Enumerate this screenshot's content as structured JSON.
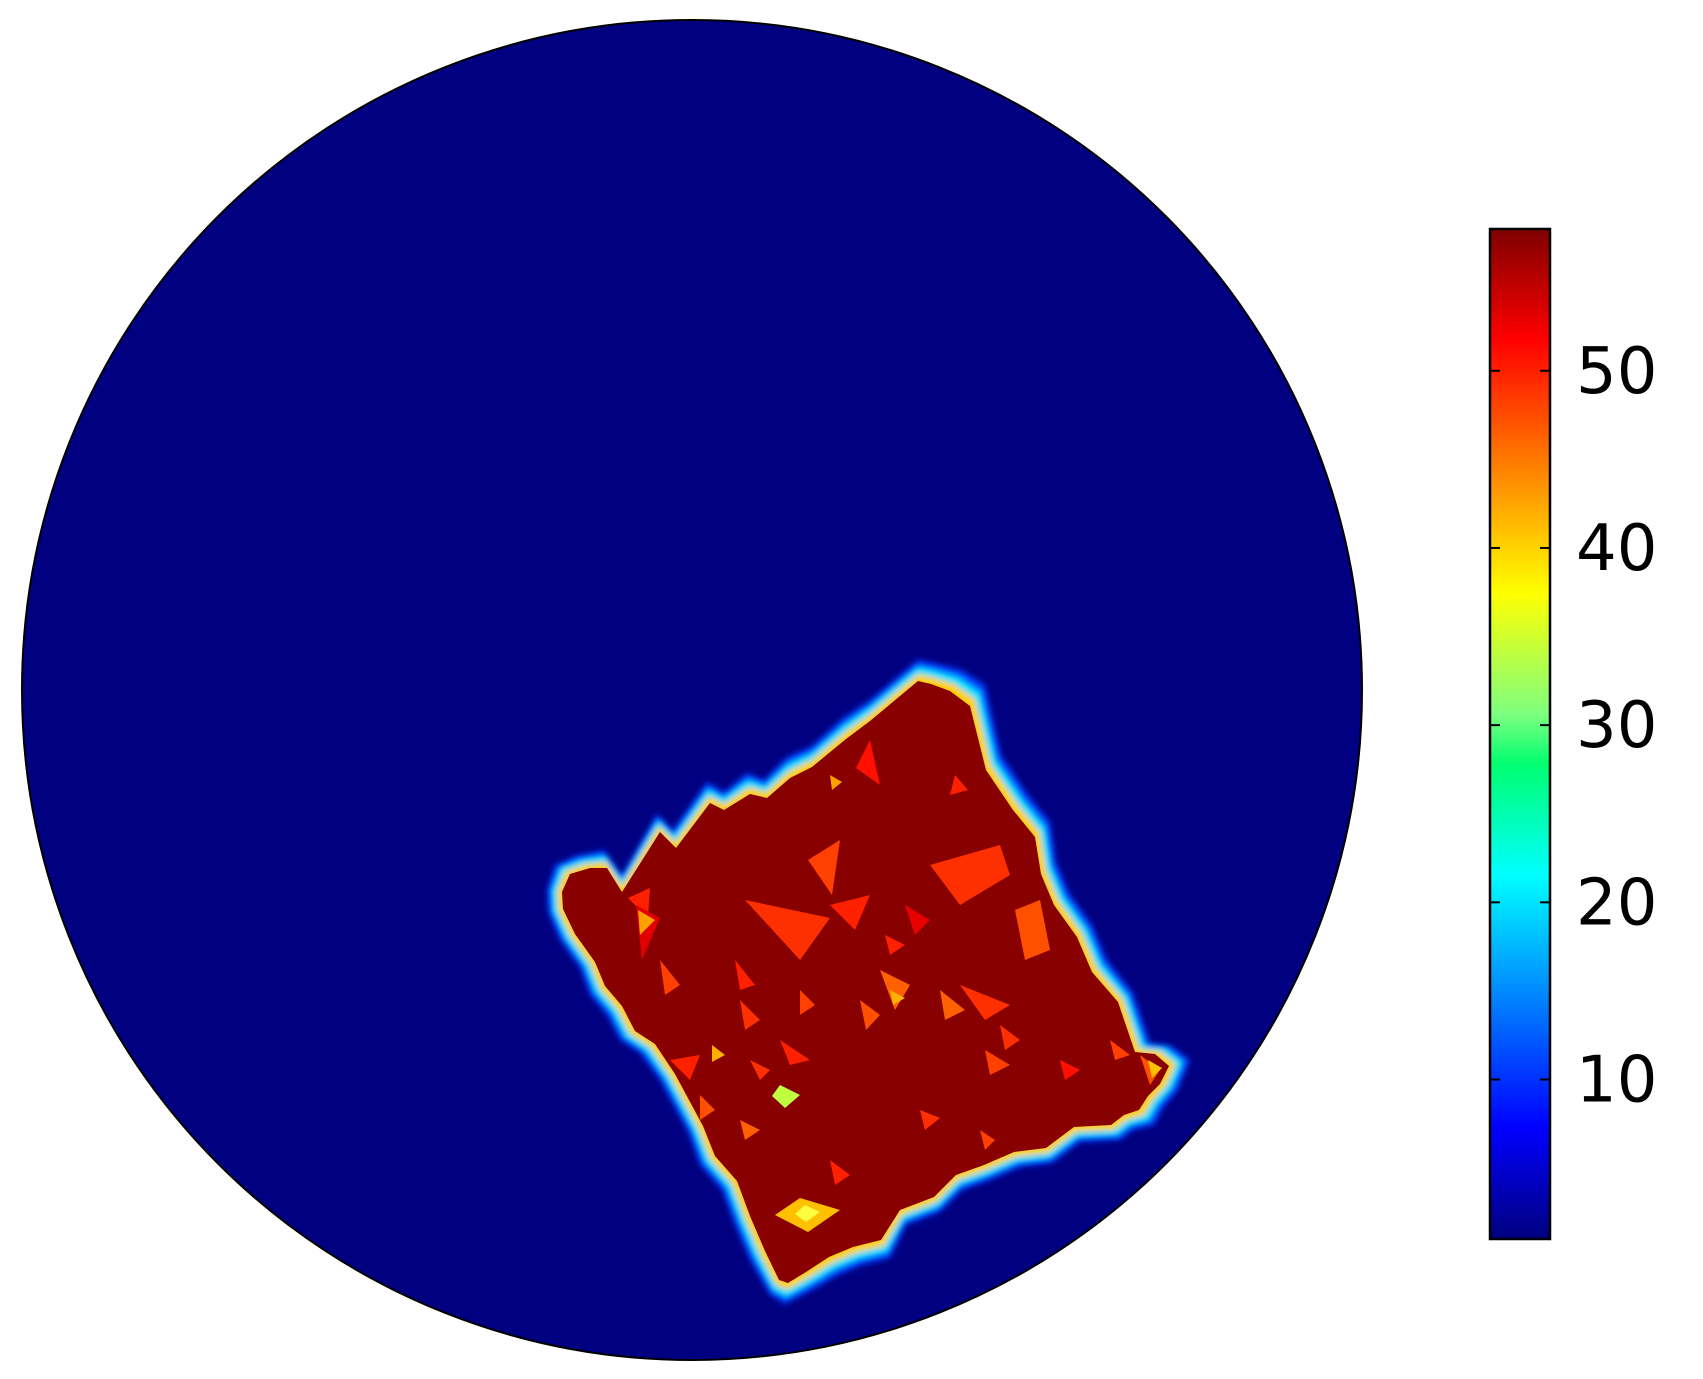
{
  "chart_data": {
    "type": "heatmap",
    "title": "",
    "xlabel": "",
    "ylabel": "",
    "domain_shape": "circle",
    "colormap": "jet",
    "background_value": 1,
    "region_value": 58,
    "region_shape": "rotated square patch in lower-right of circle",
    "colorbar": {
      "range": [
        1,
        58
      ],
      "ticks": [
        10,
        20,
        30,
        40,
        50
      ],
      "tick_labels": [
        "10",
        "20",
        "30",
        "40",
        "50"
      ],
      "placement": "right"
    },
    "grid": false
  }
}
